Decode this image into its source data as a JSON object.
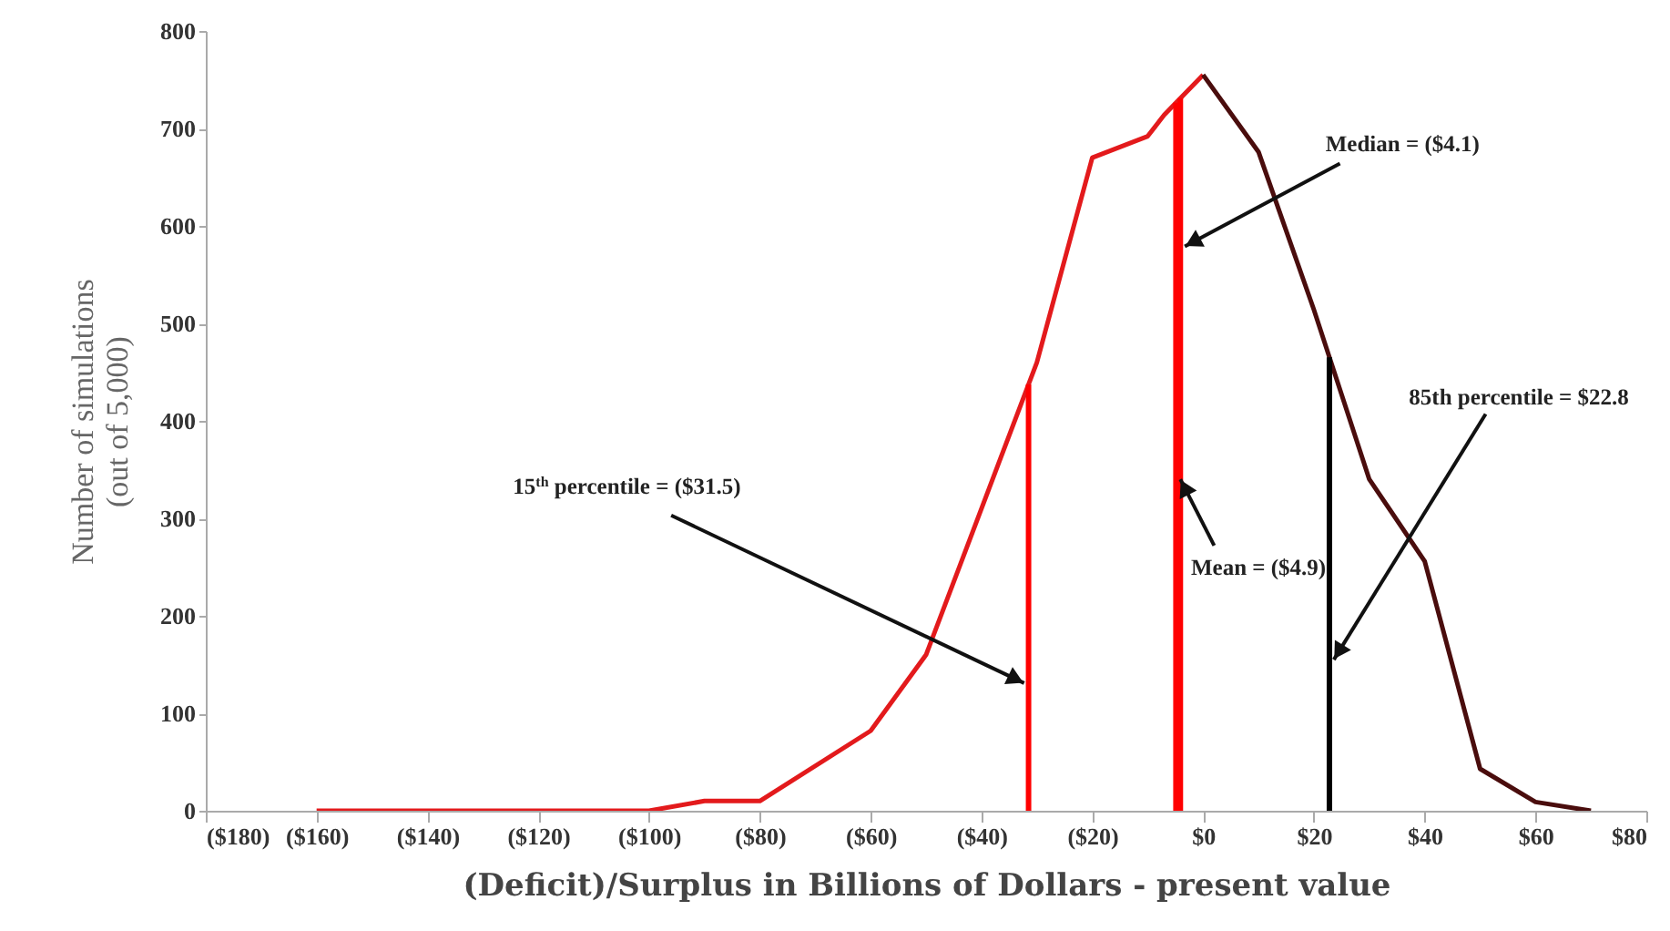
{
  "chart_data": {
    "type": "line",
    "xlabel": "(Deficit)/Surplus in Billions of Dollars - present value",
    "ylabel": "Number of simulations\n(out of 5,000)",
    "series": [
      {
        "color": "#e31a1c",
        "x": [
          -160,
          -100,
          -90,
          -80,
          -60,
          -50,
          -40,
          -30,
          -20,
          -10,
          -7,
          0
        ],
        "values": [
          0,
          0,
          10,
          10,
          82,
          160,
          310,
          460,
          670,
          692,
          714,
          755
        ]
      },
      {
        "color": "#4a0d0d",
        "x": [
          0,
          10,
          20,
          30,
          40,
          50,
          60,
          70
        ],
        "values": [
          755,
          676,
          514,
          340,
          256,
          43,
          9,
          0
        ]
      }
    ],
    "xlim": [
      -180,
      80
    ],
    "xticks": [
      {
        "value": -180,
        "label": "($180)"
      },
      {
        "value": -160,
        "label": "($160)"
      },
      {
        "value": -140,
        "label": "($140)"
      },
      {
        "value": -120,
        "label": "($120)"
      },
      {
        "value": -100,
        "label": "($100)"
      },
      {
        "value": -80,
        "label": "($80)"
      },
      {
        "value": -60,
        "label": "($60)"
      },
      {
        "value": -40,
        "label": "($40)"
      },
      {
        "value": -20,
        "label": "($20)"
      },
      {
        "value": 0,
        "label": "$0"
      },
      {
        "value": 20,
        "label": "$20"
      },
      {
        "value": 40,
        "label": "$40"
      },
      {
        "value": 60,
        "label": "$60"
      },
      {
        "value": 80,
        "label": "$80"
      }
    ],
    "ylim": [
      0,
      800
    ],
    "yticks": [
      0,
      100,
      200,
      300,
      400,
      500,
      600,
      700,
      800
    ],
    "ref_lines": [
      {
        "axis": "x",
        "value": -31.5,
        "label": "15$^{th}$ percentile = ($31.5)",
        "color": "#ff0000"
      },
      {
        "axis": "x",
        "value": -4.9,
        "label": "Mean = ($4.9)",
        "color": "#ff0000"
      },
      {
        "axis": "x",
        "value": -4.1,
        "label": "Median = ($4.1)",
        "color": "#ff0000"
      },
      {
        "axis": "x",
        "value": 22.8,
        "label": "85th percentile = $22.8",
        "color": "#000000"
      }
    ],
    "grid": false,
    "marker": "none",
    "line_style": "solid"
  }
}
